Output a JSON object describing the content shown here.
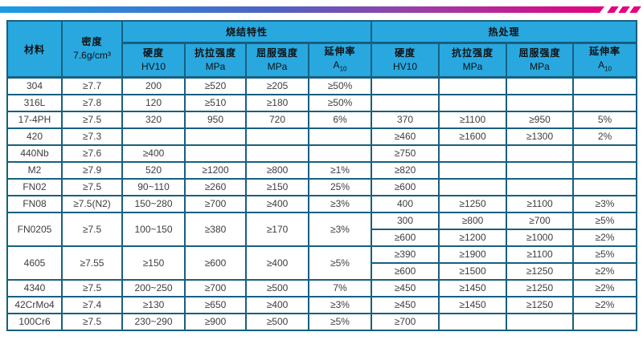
{
  "accent_bar": {
    "gradient": [
      "#1b9ce4",
      "#4f63c3",
      "#9c3da5",
      "#e5017f"
    ],
    "stripe_color": "#e5017f",
    "stripe_count": 3
  },
  "colors": {
    "header_bg": "#29a8e0",
    "grid": "#17607f",
    "cell_text": "#3d3d3d",
    "header_text": "#101010",
    "page_bg": "#ffffff"
  },
  "table": {
    "header": {
      "material": "材料",
      "density": {
        "line1": "密度",
        "line2": "7.6g/cm³"
      },
      "groups": {
        "sinter": "烧结特性",
        "heat": "热处理"
      },
      "sub_columns": [
        {
          "line1": "硬度",
          "line2": "HV10"
        },
        {
          "line1": "抗拉强度",
          "line2": "MPa"
        },
        {
          "line1": "屈服强度",
          "line2": "MPa"
        },
        {
          "line1": "延伸率",
          "line2": "A",
          "line2_sub": "10"
        }
      ]
    },
    "rows": [
      {
        "material": "304",
        "density": "≥7.7",
        "sinter": [
          "200",
          "≥520",
          "≥205",
          "≥50%"
        ],
        "heat": [
          [
            "",
            "",
            "",
            ""
          ]
        ]
      },
      {
        "material": "316L",
        "density": "≥7.8",
        "sinter": [
          "120",
          "≥510",
          "≥180",
          "≥50%"
        ],
        "heat": [
          [
            "",
            "",
            "",
            ""
          ]
        ]
      },
      {
        "material": "17-4PH",
        "density": "≥7.5",
        "sinter": [
          "320",
          "950",
          "720",
          "6%"
        ],
        "heat": [
          [
            "370",
            "≥1100",
            "≥950",
            "5%"
          ]
        ]
      },
      {
        "material": "420",
        "density": "≥7.3",
        "sinter": [
          "",
          "",
          "",
          ""
        ],
        "heat": [
          [
            "≥460",
            "≥1600",
            "≥1300",
            "2%"
          ]
        ]
      },
      {
        "material": "440Nb",
        "density": "≥7.6",
        "sinter": [
          "≥400",
          "",
          "",
          ""
        ],
        "heat": [
          [
            "≥750",
            "",
            "",
            ""
          ]
        ]
      },
      {
        "material": "M2",
        "density": "≥7.9",
        "sinter": [
          "520",
          "≥1200",
          "≥800",
          "≥1%"
        ],
        "heat": [
          [
            "≥820",
            "",
            "",
            ""
          ]
        ]
      },
      {
        "material": "FN02",
        "density": "≥7.5",
        "sinter": [
          "90~110",
          "≥260",
          "≥150",
          "25%"
        ],
        "heat": [
          [
            "≥600",
            "",
            "",
            ""
          ]
        ]
      },
      {
        "material": "FN08",
        "density": "≥7.5(N2)",
        "sinter": [
          "150~280",
          "≥700",
          "≥400",
          "≥3%"
        ],
        "heat": [
          [
            "400",
            "≥1250",
            "≥1100",
            "≥3%"
          ]
        ]
      },
      {
        "material": "FN0205",
        "density": "≥7.5",
        "sinter": [
          "100~150",
          "≥380",
          "≥170",
          "≥3%"
        ],
        "heat": [
          [
            "300",
            "≥800",
            "≥700",
            "≥5%"
          ],
          [
            "≥600",
            "≥1200",
            "≥1000",
            "≥2%"
          ]
        ]
      },
      {
        "material": "4605",
        "density": "≥7.55",
        "sinter": [
          "≥150",
          "≥600",
          "≥400",
          "≥5%"
        ],
        "heat": [
          [
            "≥390",
            "≥1900",
            "≥1100",
            "≥5%"
          ],
          [
            "≥600",
            "≥1500",
            "≥1250",
            "≥2%"
          ]
        ]
      },
      {
        "material": "4340",
        "density": "≥7.5",
        "sinter": [
          "200~250",
          "≥700",
          "≥500",
          "7%"
        ],
        "heat": [
          [
            "≥450",
            "≥1450",
            "≥1250",
            "≥2%"
          ]
        ]
      },
      {
        "material": "42CrMo4",
        "density": "≥7.4",
        "sinter": [
          "≥130",
          "≥650",
          "≥400",
          "≥3%"
        ],
        "heat": [
          [
            "≥450",
            "≥1450",
            "≥1250",
            "≥2%"
          ]
        ]
      },
      {
        "material": "100Cr6",
        "density": "≥7.5",
        "sinter": [
          "230~290",
          "≥900",
          "≥500",
          "≥5%"
        ],
        "heat": [
          [
            "≥700",
            "",
            "",
            ""
          ]
        ]
      }
    ]
  }
}
